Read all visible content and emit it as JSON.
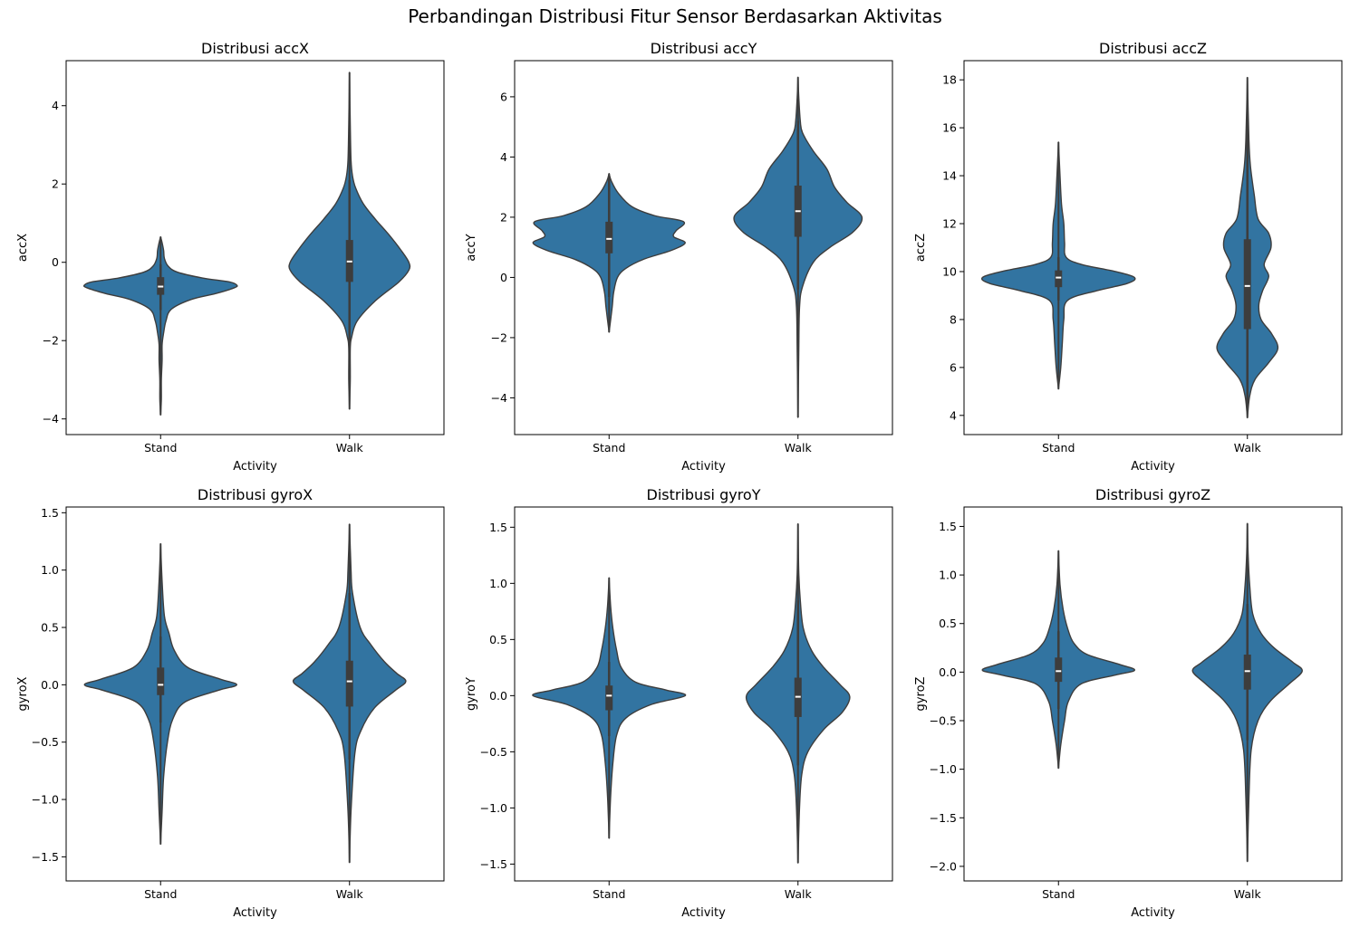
{
  "figure": {
    "title": "Perbandingan Distribusi Fitur Sensor Berdasarkan Aktivitas"
  },
  "colors": {
    "violin_fill": "#3274a1",
    "violin_edge": "#3d3d3d",
    "box": "#3d3d3d",
    "median": "#ffffff",
    "axis": "#000000"
  },
  "chart_data": [
    {
      "type": "violin",
      "title": "Distribusi accX",
      "xlabel": "Activity",
      "ylabel": "accX",
      "categories": [
        "Stand",
        "Walk"
      ],
      "ylim": [
        -4.4,
        5.15
      ],
      "yticks": [
        -4,
        -2,
        0,
        2,
        4
      ],
      "ytick_labels": [
        "−4",
        "−2",
        "0",
        "2",
        "4"
      ],
      "grid": false,
      "violins": [
        {
          "category": "Stand",
          "min": -3.9,
          "q1": -0.83,
          "median": -0.62,
          "q3": -0.38,
          "max": 0.65,
          "whisker_low": -1.22,
          "whisker_high": -0.05,
          "density": [
            [
              -3.9,
              0.0
            ],
            [
              -3.5,
              0.01
            ],
            [
              -3.0,
              0.01
            ],
            [
              -2.5,
              0.02
            ],
            [
              -2.1,
              0.02
            ],
            [
              -1.8,
              0.04
            ],
            [
              -1.5,
              0.07
            ],
            [
              -1.2,
              0.14
            ],
            [
              -0.95,
              0.4
            ],
            [
              -0.8,
              0.72
            ],
            [
              -0.65,
              0.97
            ],
            [
              -0.58,
              1.0
            ],
            [
              -0.5,
              0.9
            ],
            [
              -0.4,
              0.55
            ],
            [
              -0.25,
              0.22
            ],
            [
              -0.1,
              0.1
            ],
            [
              0.1,
              0.05
            ],
            [
              0.3,
              0.04
            ],
            [
              0.5,
              0.02
            ],
            [
              0.65,
              0.0
            ]
          ]
        },
        {
          "category": "Walk",
          "min": -3.75,
          "q1": -0.5,
          "median": 0.02,
          "q3": 0.57,
          "max": 4.85,
          "whisker_low": -2.05,
          "whisker_high": 2.1,
          "density": [
            [
              -3.75,
              0.0
            ],
            [
              -3.0,
              0.01
            ],
            [
              -2.2,
              0.01
            ],
            [
              -1.9,
              0.03
            ],
            [
              -1.5,
              0.1
            ],
            [
              -1.0,
              0.33
            ],
            [
              -0.5,
              0.65
            ],
            [
              -0.2,
              0.78
            ],
            [
              0.0,
              0.78
            ],
            [
              0.3,
              0.68
            ],
            [
              0.7,
              0.52
            ],
            [
              1.1,
              0.34
            ],
            [
              1.5,
              0.18
            ],
            [
              1.9,
              0.08
            ],
            [
              2.2,
              0.04
            ],
            [
              2.6,
              0.02
            ],
            [
              3.5,
              0.01
            ],
            [
              4.85,
              0.0
            ]
          ]
        }
      ]
    },
    {
      "type": "violin",
      "title": "Distribusi accY",
      "xlabel": "Activity",
      "ylabel": "accY",
      "categories": [
        "Stand",
        "Walk"
      ],
      "ylim": [
        -5.22,
        7.2
      ],
      "yticks": [
        -4,
        -2,
        0,
        2,
        4,
        6
      ],
      "ytick_labels": [
        "−4",
        "−2",
        "0",
        "2",
        "4",
        "6"
      ],
      "grid": false,
      "violins": [
        {
          "category": "Stand",
          "min": -1.82,
          "q1": 0.8,
          "median": 1.28,
          "q3": 1.85,
          "max": 3.45,
          "whisker_low": -0.65,
          "whisker_high": 3.3,
          "density": [
            [
              -1.82,
              0.0
            ],
            [
              -1.0,
              0.04
            ],
            [
              -0.5,
              0.06
            ],
            [
              0.0,
              0.11
            ],
            [
              0.3,
              0.22
            ],
            [
              0.6,
              0.45
            ],
            [
              0.9,
              0.82
            ],
            [
              1.15,
              1.0
            ],
            [
              1.35,
              0.85
            ],
            [
              1.55,
              0.88
            ],
            [
              1.85,
              0.98
            ],
            [
              2.05,
              0.6
            ],
            [
              2.35,
              0.3
            ],
            [
              2.8,
              0.12
            ],
            [
              3.2,
              0.03
            ],
            [
              3.45,
              0.0
            ]
          ]
        },
        {
          "category": "Walk",
          "min": -4.65,
          "q1": 1.35,
          "median": 2.2,
          "q3": 3.05,
          "max": 6.65,
          "whisker_low": -0.4,
          "whisker_high": 5.2,
          "density": [
            [
              -4.65,
              0.0
            ],
            [
              -2.5,
              0.01
            ],
            [
              -1.0,
              0.02
            ],
            [
              -0.3,
              0.06
            ],
            [
              0.5,
              0.2
            ],
            [
              1.0,
              0.42
            ],
            [
              1.5,
              0.72
            ],
            [
              2.0,
              0.84
            ],
            [
              2.5,
              0.64
            ],
            [
              3.0,
              0.48
            ],
            [
              3.6,
              0.38
            ],
            [
              4.2,
              0.2
            ],
            [
              4.8,
              0.06
            ],
            [
              5.2,
              0.03
            ],
            [
              6.0,
              0.01
            ],
            [
              6.65,
              0.0
            ]
          ]
        }
      ]
    },
    {
      "type": "violin",
      "title": "Distribusi accZ",
      "xlabel": "Activity",
      "ylabel": "accZ",
      "categories": [
        "Stand",
        "Walk"
      ],
      "ylim": [
        3.2,
        18.8
      ],
      "yticks": [
        4,
        6,
        8,
        10,
        12,
        14,
        16,
        18
      ],
      "ytick_labels": [
        "4",
        "6",
        "8",
        "10",
        "12",
        "14",
        "16",
        "18"
      ],
      "grid": false,
      "violins": [
        {
          "category": "Stand",
          "min": 5.1,
          "q1": 9.35,
          "median": 9.75,
          "q3": 10.05,
          "max": 15.4,
          "whisker_low": 8.8,
          "whisker_high": 10.6,
          "density": [
            [
              5.1,
              0.0
            ],
            [
              6.0,
              0.03
            ],
            [
              7.0,
              0.05
            ],
            [
              8.0,
              0.07
            ],
            [
              8.8,
              0.12
            ],
            [
              9.2,
              0.5
            ],
            [
              9.5,
              0.9
            ],
            [
              9.75,
              1.0
            ],
            [
              10.0,
              0.75
            ],
            [
              10.3,
              0.3
            ],
            [
              10.6,
              0.1
            ],
            [
              11.2,
              0.08
            ],
            [
              12.0,
              0.07
            ],
            [
              12.8,
              0.04
            ],
            [
              14.0,
              0.02
            ],
            [
              15.4,
              0.0
            ]
          ]
        },
        {
          "category": "Walk",
          "min": 3.9,
          "q1": 7.6,
          "median": 9.4,
          "q3": 11.35,
          "max": 18.1,
          "whisker_low": 4.2,
          "whisker_high": 16.3,
          "density": [
            [
              3.9,
              0.0
            ],
            [
              4.8,
              0.03
            ],
            [
              5.5,
              0.1
            ],
            [
              6.2,
              0.28
            ],
            [
              6.8,
              0.4
            ],
            [
              7.4,
              0.32
            ],
            [
              8.0,
              0.18
            ],
            [
              8.6,
              0.15
            ],
            [
              9.2,
              0.2
            ],
            [
              9.8,
              0.28
            ],
            [
              10.3,
              0.22
            ],
            [
              11.0,
              0.31
            ],
            [
              11.6,
              0.28
            ],
            [
              12.2,
              0.14
            ],
            [
              13.2,
              0.09
            ],
            [
              14.4,
              0.04
            ],
            [
              15.5,
              0.02
            ],
            [
              18.1,
              0.0
            ]
          ]
        }
      ]
    },
    {
      "type": "violin",
      "title": "Distribusi gyroX",
      "xlabel": "Activity",
      "ylabel": "gyroX",
      "categories": [
        "Stand",
        "Walk"
      ],
      "ylim": [
        -1.71,
        1.55
      ],
      "yticks": [
        -1.5,
        -1.0,
        -0.5,
        0.0,
        0.5,
        1.0,
        1.5
      ],
      "ytick_labels": [
        "−1.5",
        "−1.0",
        "−0.5",
        "0.0",
        "0.5",
        "1.0",
        "1.5"
      ],
      "grid": false,
      "violins": [
        {
          "category": "Stand",
          "min": -1.39,
          "q1": -0.09,
          "median": 0.0,
          "q3": 0.15,
          "max": 1.23,
          "whisker_low": -0.33,
          "whisker_high": 0.42,
          "density": [
            [
              -1.39,
              0.0
            ],
            [
              -1.1,
              0.02
            ],
            [
              -0.8,
              0.04
            ],
            [
              -0.5,
              0.09
            ],
            [
              -0.3,
              0.16
            ],
            [
              -0.15,
              0.32
            ],
            [
              -0.05,
              0.75
            ],
            [
              0.0,
              1.0
            ],
            [
              0.05,
              0.78
            ],
            [
              0.15,
              0.36
            ],
            [
              0.3,
              0.18
            ],
            [
              0.45,
              0.11
            ],
            [
              0.6,
              0.05
            ],
            [
              0.9,
              0.02
            ],
            [
              1.23,
              0.0
            ]
          ]
        },
        {
          "category": "Walk",
          "min": -1.55,
          "q1": -0.19,
          "median": 0.03,
          "q3": 0.21,
          "max": 1.4,
          "whisker_low": -0.65,
          "whisker_high": 0.8,
          "density": [
            [
              -1.55,
              0.0
            ],
            [
              -1.1,
              0.02
            ],
            [
              -0.6,
              0.07
            ],
            [
              -0.4,
              0.15
            ],
            [
              -0.2,
              0.33
            ],
            [
              -0.05,
              0.6
            ],
            [
              0.03,
              0.74
            ],
            [
              0.1,
              0.62
            ],
            [
              0.2,
              0.46
            ],
            [
              0.35,
              0.28
            ],
            [
              0.5,
              0.14
            ],
            [
              0.8,
              0.04
            ],
            [
              1.0,
              0.02
            ],
            [
              1.4,
              0.0
            ]
          ]
        }
      ]
    },
    {
      "type": "violin",
      "title": "Distribusi gyroY",
      "xlabel": "Activity",
      "ylabel": "gyroY",
      "categories": [
        "Stand",
        "Walk"
      ],
      "ylim": [
        -1.65,
        1.68
      ],
      "yticks": [
        -1.5,
        -1.0,
        -0.5,
        0.0,
        0.5,
        1.0,
        1.5
      ],
      "ytick_labels": [
        "−1.5",
        "−1.0",
        "−0.5",
        "0.0",
        "0.5",
        "1.0",
        "1.5"
      ],
      "grid": false,
      "violins": [
        {
          "category": "Stand",
          "min": -1.27,
          "q1": -0.13,
          "median": 0.0,
          "q3": 0.09,
          "max": 1.05,
          "whisker_low": -0.36,
          "whisker_high": 0.3,
          "density": [
            [
              -1.27,
              0.0
            ],
            [
              -0.9,
              0.02
            ],
            [
              -0.6,
              0.05
            ],
            [
              -0.35,
              0.1
            ],
            [
              -0.2,
              0.22
            ],
            [
              -0.08,
              0.55
            ],
            [
              0.0,
              1.0
            ],
            [
              0.05,
              0.75
            ],
            [
              0.12,
              0.35
            ],
            [
              0.25,
              0.16
            ],
            [
              0.4,
              0.1
            ],
            [
              0.6,
              0.05
            ],
            [
              0.8,
              0.02
            ],
            [
              1.05,
              0.0
            ]
          ]
        },
        {
          "category": "Walk",
          "min": -1.49,
          "q1": -0.19,
          "median": -0.01,
          "q3": 0.16,
          "max": 1.53,
          "whisker_low": -0.62,
          "whisker_high": 0.85,
          "density": [
            [
              -1.49,
              0.0
            ],
            [
              -1.0,
              0.02
            ],
            [
              -0.7,
              0.05
            ],
            [
              -0.5,
              0.13
            ],
            [
              -0.3,
              0.34
            ],
            [
              -0.15,
              0.58
            ],
            [
              -0.01,
              0.68
            ],
            [
              0.1,
              0.55
            ],
            [
              0.25,
              0.34
            ],
            [
              0.4,
              0.18
            ],
            [
              0.6,
              0.07
            ],
            [
              0.85,
              0.03
            ],
            [
              1.1,
              0.01
            ],
            [
              1.53,
              0.0
            ]
          ]
        }
      ]
    },
    {
      "type": "violin",
      "title": "Distribusi gyroZ",
      "xlabel": "Activity",
      "ylabel": "gyroZ",
      "categories": [
        "Stand",
        "Walk"
      ],
      "ylim": [
        -2.15,
        1.7
      ],
      "yticks": [
        -2.0,
        -1.5,
        -1.0,
        -0.5,
        0.0,
        0.5,
        1.0,
        1.5
      ],
      "ytick_labels": [
        "−2.0",
        "−1.5",
        "−1.0",
        "−0.5",
        "0.0",
        "0.5",
        "1.0",
        "1.5"
      ],
      "grid": false,
      "violins": [
        {
          "category": "Stand",
          "min": -0.99,
          "q1": -0.1,
          "median": 0.01,
          "q3": 0.15,
          "max": 1.25,
          "whisker_low": -0.38,
          "whisker_high": 0.42,
          "density": [
            [
              -0.99,
              0.0
            ],
            [
              -0.75,
              0.03
            ],
            [
              -0.5,
              0.08
            ],
            [
              -0.3,
              0.13
            ],
            [
              -0.12,
              0.3
            ],
            [
              -0.03,
              0.75
            ],
            [
              0.02,
              1.0
            ],
            [
              0.08,
              0.8
            ],
            [
              0.18,
              0.38
            ],
            [
              0.3,
              0.2
            ],
            [
              0.45,
              0.12
            ],
            [
              0.65,
              0.06
            ],
            [
              0.9,
              0.02
            ],
            [
              1.25,
              0.0
            ]
          ]
        },
        {
          "category": "Walk",
          "min": -1.95,
          "q1": -0.18,
          "median": 0.01,
          "q3": 0.18,
          "max": 1.53,
          "whisker_low": -0.7,
          "whisker_high": 0.7,
          "density": [
            [
              -1.95,
              0.0
            ],
            [
              -1.3,
              0.02
            ],
            [
              -0.8,
              0.05
            ],
            [
              -0.5,
              0.14
            ],
            [
              -0.3,
              0.3
            ],
            [
              -0.12,
              0.55
            ],
            [
              0.01,
              0.72
            ],
            [
              0.1,
              0.6
            ],
            [
              0.25,
              0.35
            ],
            [
              0.4,
              0.18
            ],
            [
              0.6,
              0.07
            ],
            [
              0.9,
              0.03
            ],
            [
              1.2,
              0.01
            ],
            [
              1.53,
              0.0
            ]
          ]
        }
      ]
    }
  ]
}
